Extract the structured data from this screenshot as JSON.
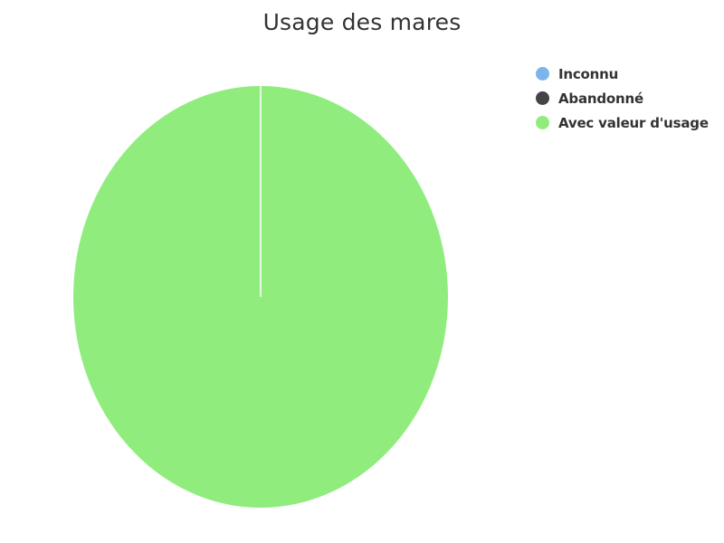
{
  "chart_data": {
    "type": "pie",
    "title": "Usage des mares",
    "categories": [
      "Inconnu",
      "Abandonné",
      "Avec valeur d'usage"
    ],
    "values": [
      0,
      0,
      100
    ],
    "colors": [
      "#7cb5ec",
      "#434348",
      "#90ed7d"
    ],
    "legend_position": "top-right",
    "start_angle_deg": 0,
    "slice_border_color": "#ffffff"
  }
}
